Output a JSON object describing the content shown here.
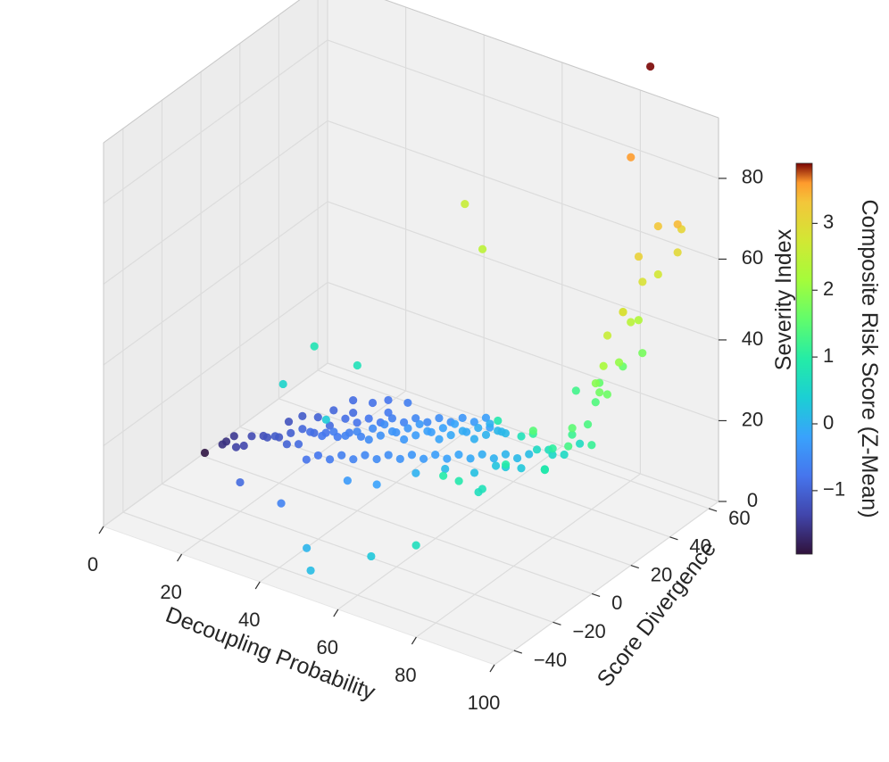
{
  "chart_data": {
    "type": "scatter",
    "projection": "3d",
    "xlabel": "Decoupling Probability",
    "ylabel": "Score Divergence",
    "zlabel": "Severity Index",
    "xlim": [
      0,
      100
    ],
    "ylim": [
      -50,
      65
    ],
    "zlim": [
      0,
      95
    ],
    "x_ticks": [
      "0",
      "20",
      "40",
      "60",
      "80",
      "100"
    ],
    "y_ticks": [
      "−40",
      "−20",
      "0",
      "20",
      "40",
      "60"
    ],
    "z_ticks": [
      "0",
      "20",
      "40",
      "60",
      "80"
    ],
    "grid": true,
    "colormap": "turbo",
    "colorbar": {
      "label": "Composite Risk Score (Z-Mean)",
      "ticks": [
        "−1",
        "0",
        "1",
        "2",
        "3"
      ],
      "range": [
        -1.95,
        3.9
      ]
    },
    "series": [
      {
        "points": [
          [
            1,
            0,
            1,
            -1.9
          ],
          [
            3,
            5,
            2,
            -1.6
          ],
          [
            3,
            7,
            2,
            -1.6
          ],
          [
            4,
            9,
            3,
            -1.5
          ],
          [
            6,
            6,
            2,
            -1.4
          ],
          [
            7,
            8,
            2,
            -1.35
          ],
          [
            8,
            10,
            4,
            -1.3
          ],
          [
            9,
            14,
            3,
            -1.25
          ],
          [
            11,
            12,
            4,
            -1.2
          ],
          [
            12,
            16,
            3,
            -1.15
          ],
          [
            13,
            12,
            5,
            -1.1
          ],
          [
            14,
            18,
            4,
            -1.05
          ],
          [
            15,
            14,
            3,
            -1.0
          ],
          [
            16,
            20,
            5,
            -0.95
          ],
          [
            17,
            16,
            3,
            -0.9
          ],
          [
            18,
            22,
            4,
            -0.9
          ],
          [
            19,
            18,
            6,
            -0.85
          ],
          [
            20,
            24,
            4,
            -0.8
          ],
          [
            21,
            20,
            5,
            -0.75
          ],
          [
            22,
            26,
            3,
            -0.7
          ],
          [
            23,
            22,
            6,
            -0.68
          ],
          [
            24,
            28,
            4,
            -0.65
          ],
          [
            25,
            24,
            5,
            -0.6
          ],
          [
            26,
            30,
            3,
            -0.58
          ],
          [
            27,
            26,
            6,
            -0.55
          ],
          [
            28,
            32,
            5,
            -0.5
          ],
          [
            29,
            28,
            4,
            -0.48
          ],
          [
            30,
            34,
            6,
            -0.45
          ],
          [
            31,
            30,
            5,
            -0.42
          ],
          [
            32,
            36,
            4,
            -0.4
          ],
          [
            33,
            32,
            6,
            -0.37
          ],
          [
            34,
            38,
            5,
            -0.35
          ],
          [
            35,
            34,
            4,
            -0.32
          ],
          [
            36,
            40,
            6,
            -0.3
          ],
          [
            37,
            36,
            5,
            -0.27
          ],
          [
            38,
            42,
            4,
            -0.25
          ],
          [
            39,
            38,
            6,
            -0.22
          ],
          [
            40,
            44,
            5,
            -0.2
          ],
          [
            41,
            40,
            4,
            -0.17
          ],
          [
            42,
            46,
            6,
            -0.15
          ],
          [
            43,
            42,
            5,
            -0.12
          ],
          [
            44,
            48,
            4,
            -0.1
          ],
          [
            45,
            44,
            6,
            -0.07
          ],
          [
            46,
            50,
            5,
            -0.05
          ],
          [
            47,
            46,
            4,
            -0.02
          ],
          [
            48,
            52,
            6,
            0.0
          ],
          [
            49,
            48,
            5,
            0.03
          ],
          [
            50,
            54,
            4,
            0.05
          ],
          [
            51,
            50,
            6,
            0.08
          ],
          [
            52,
            52,
            5,
            0.1
          ],
          [
            18,
            30,
            3,
            -0.9
          ],
          [
            20,
            34,
            4,
            -0.85
          ],
          [
            22,
            36,
            3,
            -0.8
          ],
          [
            24,
            38,
            4,
            -0.75
          ],
          [
            26,
            40,
            3,
            -0.7
          ],
          [
            28,
            42,
            4,
            -0.65
          ],
          [
            30,
            44,
            3,
            -0.6
          ],
          [
            32,
            46,
            4,
            -0.55
          ],
          [
            34,
            48,
            3,
            -0.5
          ],
          [
            36,
            50,
            4,
            -0.45
          ],
          [
            38,
            52,
            3,
            -0.4
          ],
          [
            40,
            54,
            4,
            -0.35
          ],
          [
            42,
            56,
            3,
            -0.3
          ],
          [
            44,
            58,
            4,
            -0.25
          ],
          [
            46,
            56,
            3,
            -0.2
          ],
          [
            22,
            10,
            3,
            -0.8
          ],
          [
            24,
            12,
            4,
            -0.75
          ],
          [
            26,
            14,
            3,
            -0.7
          ],
          [
            28,
            16,
            4,
            -0.65
          ],
          [
            30,
            18,
            3,
            -0.6
          ],
          [
            32,
            20,
            4,
            -0.55
          ],
          [
            34,
            22,
            3,
            -0.5
          ],
          [
            36,
            24,
            4,
            -0.45
          ],
          [
            38,
            26,
            3,
            -0.4
          ],
          [
            40,
            28,
            4,
            -0.35
          ],
          [
            42,
            30,
            3,
            -0.3
          ],
          [
            44,
            32,
            4,
            -0.25
          ],
          [
            46,
            34,
            3,
            -0.2
          ],
          [
            48,
            36,
            4,
            -0.15
          ],
          [
            50,
            38,
            3,
            -0.1
          ],
          [
            52,
            40,
            4,
            -0.05
          ],
          [
            54,
            42,
            3,
            0.0
          ],
          [
            56,
            44,
            4,
            0.05
          ],
          [
            58,
            46,
            3,
            0.1
          ],
          [
            60,
            48,
            4,
            0.15
          ],
          [
            10,
            25,
            3,
            -1.2
          ],
          [
            12,
            28,
            4,
            -1.1
          ],
          [
            14,
            32,
            3,
            -1.0
          ],
          [
            16,
            36,
            4,
            -0.95
          ],
          [
            19,
            40,
            3,
            -0.9
          ],
          [
            17,
            44,
            4,
            -0.88
          ],
          [
            20,
            48,
            3,
            -0.82
          ],
          [
            23,
            50,
            4,
            -0.78
          ],
          [
            25,
            46,
            3,
            -0.72
          ],
          [
            27,
            52,
            4,
            -0.66
          ],
          [
            15,
            -10,
            2,
            -0.9
          ],
          [
            28,
            -15,
            3,
            -0.6
          ],
          [
            35,
            5,
            4,
            -0.3
          ],
          [
            40,
            10,
            3,
            -0.2
          ],
          [
            45,
            20,
            4,
            0.0
          ],
          [
            50,
            25,
            5,
            0.1
          ],
          [
            55,
            30,
            4,
            0.2
          ],
          [
            58,
            35,
            5,
            0.25
          ],
          [
            62,
            40,
            4,
            0.3
          ],
          [
            60,
            36,
            5,
            0.3
          ],
          [
            62,
            28,
            20,
            0.9
          ],
          [
            64,
            36,
            14,
            0.75
          ],
          [
            66,
            40,
            10,
            0.6
          ],
          [
            68,
            44,
            8,
            0.55
          ],
          [
            70,
            38,
            12,
            0.7
          ],
          [
            72,
            32,
            10,
            0.8
          ],
          [
            74,
            28,
            12,
            0.85
          ],
          [
            76,
            24,
            14,
            0.9
          ],
          [
            70,
            46,
            8,
            0.6
          ],
          [
            72,
            50,
            10,
            0.65
          ],
          [
            68,
            20,
            14,
            0.95
          ],
          [
            66,
            10,
            10,
            0.7
          ],
          [
            64,
            16,
            8,
            0.75
          ],
          [
            60,
            12,
            10,
            0.9
          ],
          [
            58,
            8,
            12,
            0.95
          ],
          [
            75,
            20,
            24,
            1.1
          ],
          [
            78,
            24,
            20,
            1.05
          ],
          [
            80,
            30,
            22,
            1.2
          ],
          [
            82,
            36,
            18,
            1.15
          ],
          [
            76,
            40,
            28,
            1.25
          ],
          [
            84,
            20,
            24,
            1.3
          ],
          [
            86,
            26,
            28,
            1.35
          ],
          [
            84,
            34,
            30,
            1.4
          ],
          [
            88,
            14,
            32,
            1.5
          ],
          [
            80,
            10,
            30,
            1.45
          ],
          [
            82,
            40,
            32,
            1.55
          ],
          [
            86,
            44,
            36,
            1.6
          ],
          [
            88,
            32,
            34,
            1.65
          ],
          [
            90,
            24,
            38,
            1.7
          ],
          [
            90,
            46,
            40,
            1.75
          ],
          [
            92,
            30,
            44,
            2.0
          ],
          [
            91,
            20,
            42,
            1.9
          ],
          [
            94,
            18,
            48,
            2.2
          ],
          [
            93,
            38,
            52,
            2.3
          ],
          [
            95,
            30,
            55,
            2.4
          ],
          [
            96,
            24,
            60,
            2.5
          ],
          [
            97,
            14,
            58,
            2.6
          ],
          [
            97,
            40,
            64,
            2.75
          ],
          [
            98,
            30,
            66,
            2.85
          ],
          [
            98,
            20,
            62,
            2.9
          ],
          [
            99,
            46,
            68,
            3.0
          ],
          [
            98,
            50,
            72,
            3.05
          ],
          [
            99,
            26,
            74,
            3.15
          ],
          [
            99,
            36,
            78,
            3.3
          ],
          [
            100,
            44,
            76,
            3.4
          ],
          [
            70,
            -5,
            88,
            2.6
          ],
          [
            78,
            -12,
            82,
            2.45
          ],
          [
            99,
            22,
            100,
            3.6
          ],
          [
            100,
            30,
            120,
            3.9
          ],
          [
            30,
            -2,
            38,
            0.8
          ],
          [
            40,
            0,
            36,
            0.75
          ],
          [
            24,
            -6,
            28,
            0.5
          ],
          [
            36,
            -8,
            24,
            0.35
          ],
          [
            42,
            -30,
            2,
            0.05
          ],
          [
            56,
            -25,
            3,
            0.3
          ],
          [
            64,
            -18,
            6,
            0.7
          ],
          [
            48,
            -40,
            2,
            0.15
          ]
        ]
      }
    ]
  }
}
